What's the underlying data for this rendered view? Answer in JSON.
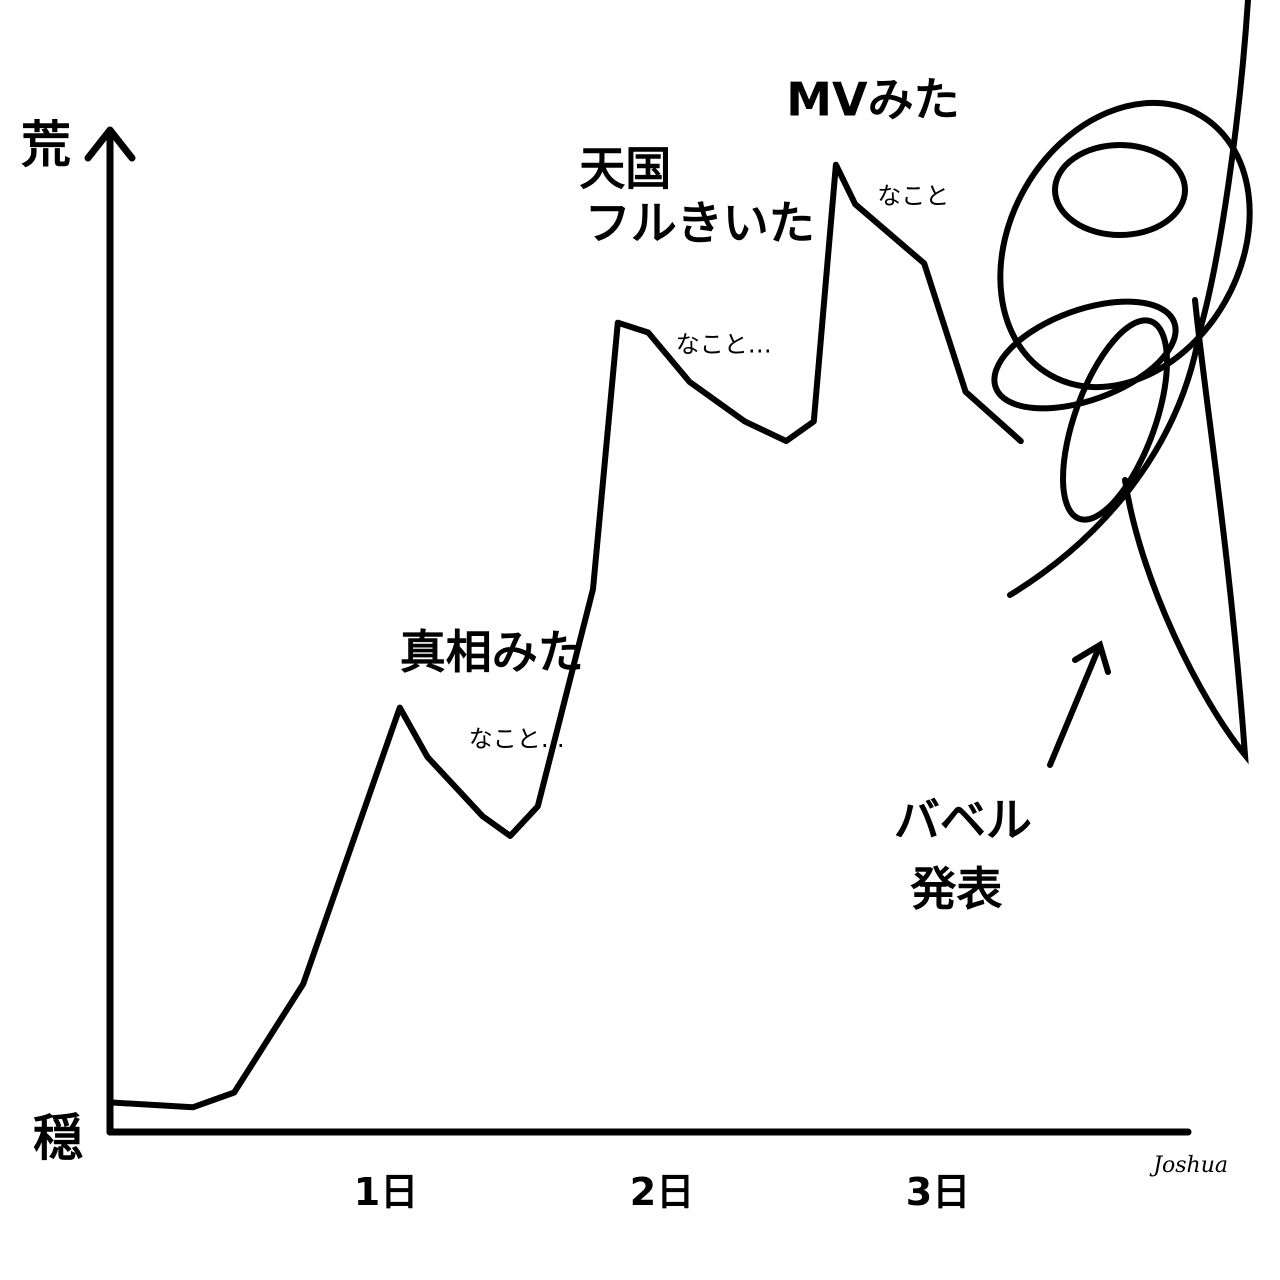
{
  "chart_data": {
    "type": "line",
    "y_axis_top_label": "荒",
    "y_axis_bottom_label": "穏",
    "x_tick_labels": [
      "1日",
      "2日",
      "3日"
    ],
    "x_tick_values": [
      1,
      2,
      3
    ],
    "xlim": [
      0,
      3.85
    ],
    "ylim": [
      0,
      1
    ],
    "series": [
      {
        "values": [
          [
            0.0,
            0.03
          ],
          [
            0.3,
            0.025
          ],
          [
            0.45,
            0.04
          ],
          [
            0.7,
            0.15
          ],
          [
            0.95,
            0.35
          ],
          [
            1.05,
            0.43
          ],
          [
            1.15,
            0.38
          ],
          [
            1.35,
            0.32
          ],
          [
            1.45,
            0.3
          ],
          [
            1.55,
            0.33
          ],
          [
            1.75,
            0.55
          ],
          [
            1.84,
            0.82
          ],
          [
            1.95,
            0.81
          ],
          [
            2.1,
            0.76
          ],
          [
            2.3,
            0.72
          ],
          [
            2.45,
            0.7
          ],
          [
            2.55,
            0.72
          ],
          [
            2.63,
            0.98
          ],
          [
            2.7,
            0.94
          ],
          [
            2.95,
            0.88
          ],
          [
            3.1,
            0.75
          ],
          [
            3.3,
            0.7
          ]
        ]
      }
    ],
    "annotations": [
      {
        "text": "真相みた",
        "x": 1.05,
        "y": 0.47
      },
      {
        "text": "なこと…",
        "x": 1.3,
        "y": 0.39,
        "small": true
      },
      {
        "text": "天国",
        "x": 1.7,
        "y": 0.96
      },
      {
        "text": "フルきいた",
        "x": 1.72,
        "y": 0.905
      },
      {
        "text": "なこと…",
        "x": 2.05,
        "y": 0.79,
        "small": true
      },
      {
        "text": "MVみた",
        "x": 2.45,
        "y": 1.03
      },
      {
        "text": "なこと",
        "x": 2.78,
        "y": 0.94,
        "small": true
      },
      {
        "text": "バベル",
        "x": 2.84,
        "y": 0.3
      },
      {
        "text": "発表",
        "x": 2.9,
        "y": 0.23
      }
    ],
    "signature": "Joshua"
  }
}
